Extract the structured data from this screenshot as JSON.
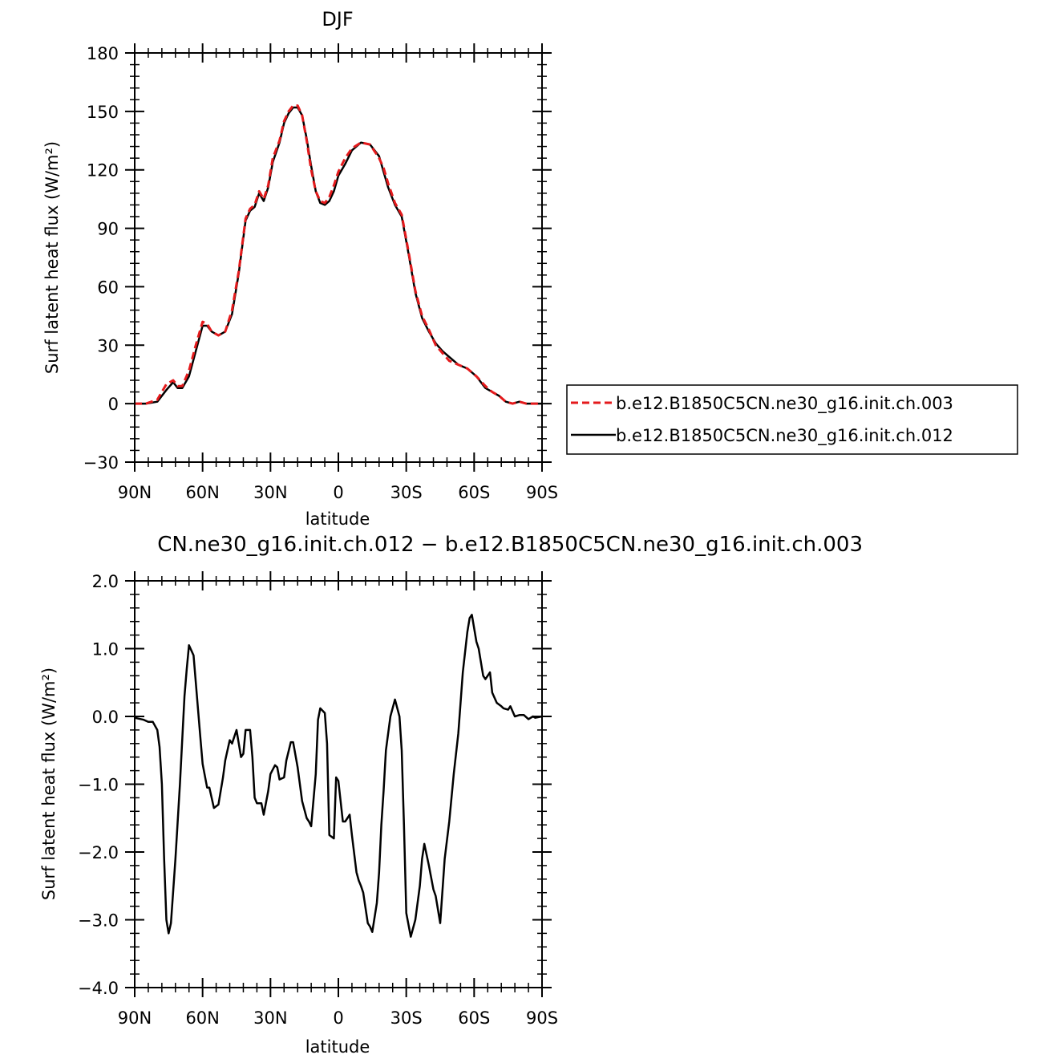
{
  "chart_data": [
    {
      "type": "line",
      "title": "DJF",
      "xlabel": "latitude",
      "ylabel": "Surf latent heat flux (W/m²)",
      "xlim": [
        -90,
        90
      ],
      "ylim": [
        -30,
        180
      ],
      "x_note": "x is latitude in degrees; negative = north (90N at left), positive = south (90S at right)",
      "xticks": [
        -90,
        -60,
        -30,
        0,
        30,
        60,
        90
      ],
      "xtick_labels": [
        "90N",
        "60N",
        "30N",
        "0",
        "30S",
        "60S",
        "90S"
      ],
      "yticks": [
        -30,
        0,
        30,
        60,
        90,
        120,
        150,
        180
      ],
      "ytick_labels": [
        "−30",
        "0",
        "30",
        "60",
        "90",
        "120",
        "150",
        "180"
      ],
      "legend": "right",
      "series": [
        {
          "name": "b.e12.B1850C5CN.ne30_g16.init.ch.003",
          "color": "#e41a1c",
          "dash": "dashed",
          "x": [
            -90,
            -85,
            -80,
            -76,
            -73,
            -71,
            -69,
            -66,
            -63,
            -60,
            -58,
            -56,
            -53,
            -50,
            -47,
            -44,
            -41,
            -39,
            -37,
            -35,
            -33,
            -31,
            -29,
            -26,
            -24,
            -22,
            -20,
            -18,
            -16,
            -14,
            -12,
            -10,
            -8,
            -6,
            -4,
            -2,
            0,
            3,
            6,
            10,
            14,
            18,
            20,
            22,
            25,
            28,
            31,
            34,
            37,
            40,
            43,
            46,
            49,
            53,
            57,
            61,
            65,
            68,
            71,
            74,
            77,
            80,
            83,
            86,
            90
          ],
          "y": [
            0,
            0,
            2,
            10,
            12,
            9,
            9,
            17,
            30,
            42,
            41,
            37,
            35,
            37,
            48,
            68,
            95,
            100,
            102,
            109,
            105,
            112,
            126,
            135,
            145,
            150,
            153,
            153,
            148,
            135,
            120,
            109,
            104,
            103,
            106,
            112,
            119,
            126,
            131,
            134,
            133,
            126,
            121,
            113,
            103,
            97,
            78,
            58,
            45,
            38,
            30,
            26,
            22,
            20,
            18,
            14,
            9,
            6,
            4,
            1,
            0,
            1,
            0,
            0,
            0
          ]
        },
        {
          "name": "b.e12.B1850C5CN.ne30_g16.init.ch.012",
          "color": "#000000",
          "dash": "solid",
          "x": [
            -90,
            -85,
            -80,
            -76,
            -73,
            -71,
            -69,
            -66,
            -63,
            -60,
            -58,
            -56,
            -53,
            -50,
            -47,
            -44,
            -41,
            -39,
            -37,
            -35,
            -33,
            -31,
            -29,
            -26,
            -24,
            -22,
            -20,
            -18,
            -16,
            -14,
            -12,
            -10,
            -8,
            -6,
            -4,
            -2,
            0,
            3,
            6,
            10,
            14,
            18,
            20,
            22,
            25,
            28,
            31,
            34,
            37,
            40,
            43,
            46,
            49,
            53,
            57,
            61,
            65,
            68,
            71,
            74,
            77,
            80,
            83,
            86,
            90
          ],
          "y": [
            0,
            0,
            1,
            7,
            11,
            8,
            8,
            14,
            27,
            40,
            40,
            37,
            35,
            37,
            46,
            67,
            94,
            99,
            101,
            108,
            104,
            111,
            124,
            134,
            144,
            149,
            152,
            152,
            148,
            136,
            122,
            109,
            103,
            102,
            104,
            109,
            117,
            123,
            130,
            134,
            133,
            127,
            119,
            111,
            102,
            96,
            77,
            57,
            44,
            37,
            31,
            27,
            24,
            20,
            18,
            14,
            8,
            6,
            4,
            1,
            0,
            1,
            0,
            0,
            0
          ]
        }
      ]
    },
    {
      "type": "line",
      "title": "CN.ne30_g16.init.ch.012 − b.e12.B1850C5CN.ne30_g16.init.ch.003",
      "xlabel": "latitude",
      "ylabel": "Surf latent heat flux (W/m²)",
      "xlim": [
        -90,
        90
      ],
      "ylim": [
        -4,
        2
      ],
      "x_note": "x is latitude in degrees; negative = north (90N at left), positive = south (90S at right)",
      "xticks": [
        -90,
        -60,
        -30,
        0,
        30,
        60,
        90
      ],
      "xtick_labels": [
        "90N",
        "60N",
        "30N",
        "0",
        "30S",
        "60S",
        "90S"
      ],
      "yticks": [
        -4,
        -3,
        -2,
        -1,
        0,
        1,
        2
      ],
      "ytick_labels": [
        "−4.0",
        "−3.0",
        "−2.0",
        "−1.0",
        "0.0",
        "1.0",
        "2.0"
      ],
      "series": [
        {
          "color": "#000000",
          "dash": "solid",
          "x": [
            -90,
            -86,
            -84,
            -82,
            -80,
            -79,
            -78,
            -77,
            -76,
            -75,
            -74,
            -72,
            -70,
            -68,
            -67,
            -66,
            -64,
            -62,
            -61,
            -60,
            -58,
            -57,
            -55,
            -53,
            -51,
            -50,
            -48,
            -47,
            -45,
            -43,
            -42,
            -41,
            -39,
            -38,
            -37,
            -36,
            -34,
            -33,
            -31,
            -30,
            -28,
            -27,
            -26,
            -24,
            -23,
            -21,
            -20,
            -18,
            -16,
            -14,
            -13,
            -12,
            -10,
            -9,
            -8,
            -6,
            -5,
            -4,
            -2,
            -1,
            0,
            2,
            3,
            5,
            6,
            8,
            9,
            10,
            11,
            13,
            14,
            15,
            17,
            18,
            19,
            20,
            21,
            23,
            25,
            27,
            28,
            29,
            30,
            32,
            34,
            36,
            37,
            38,
            40,
            42,
            43,
            45,
            47,
            49,
            51,
            53,
            55,
            57,
            58,
            59,
            61,
            62,
            63,
            64,
            65,
            67,
            68,
            70,
            72,
            73,
            75,
            76,
            78,
            80,
            82,
            84,
            86,
            87,
            90
          ],
          "y": [
            -0.02,
            -0.05,
            -0.08,
            -0.08,
            -0.2,
            -0.45,
            -1.0,
            -2.1,
            -3.0,
            -3.2,
            -3.05,
            -2.1,
            -1.0,
            0.3,
            0.7,
            1.05,
            0.9,
            0.1,
            -0.3,
            -0.7,
            -1.05,
            -1.05,
            -1.35,
            -1.3,
            -0.9,
            -0.65,
            -0.35,
            -0.4,
            -0.2,
            -0.6,
            -0.55,
            -0.2,
            -0.2,
            -0.6,
            -1.2,
            -1.28,
            -1.28,
            -1.45,
            -1.1,
            -0.85,
            -0.72,
            -0.75,
            -0.93,
            -0.9,
            -0.65,
            -0.38,
            -0.38,
            -0.75,
            -1.25,
            -1.5,
            -1.55,
            -1.62,
            -0.85,
            -0.05,
            0.12,
            0.05,
            -0.4,
            -1.75,
            -1.8,
            -0.9,
            -0.95,
            -1.55,
            -1.55,
            -1.45,
            -1.75,
            -2.3,
            -2.42,
            -2.5,
            -2.6,
            -3.05,
            -3.1,
            -3.18,
            -2.75,
            -2.3,
            -1.6,
            -1.1,
            -0.5,
            0.0,
            0.25,
            0.0,
            -0.5,
            -1.6,
            -2.9,
            -3.25,
            -3.0,
            -2.5,
            -2.1,
            -1.88,
            -2.2,
            -2.55,
            -2.65,
            -3.05,
            -2.1,
            -1.55,
            -0.85,
            -0.25,
            0.65,
            1.25,
            1.45,
            1.5,
            1.1,
            1.0,
            0.8,
            0.6,
            0.55,
            0.65,
            0.35,
            0.2,
            0.15,
            0.12,
            0.1,
            0.15,
            0.0,
            0.02,
            0.02,
            -0.04,
            0.0,
            -0.02,
            0.0
          ]
        }
      ]
    }
  ]
}
